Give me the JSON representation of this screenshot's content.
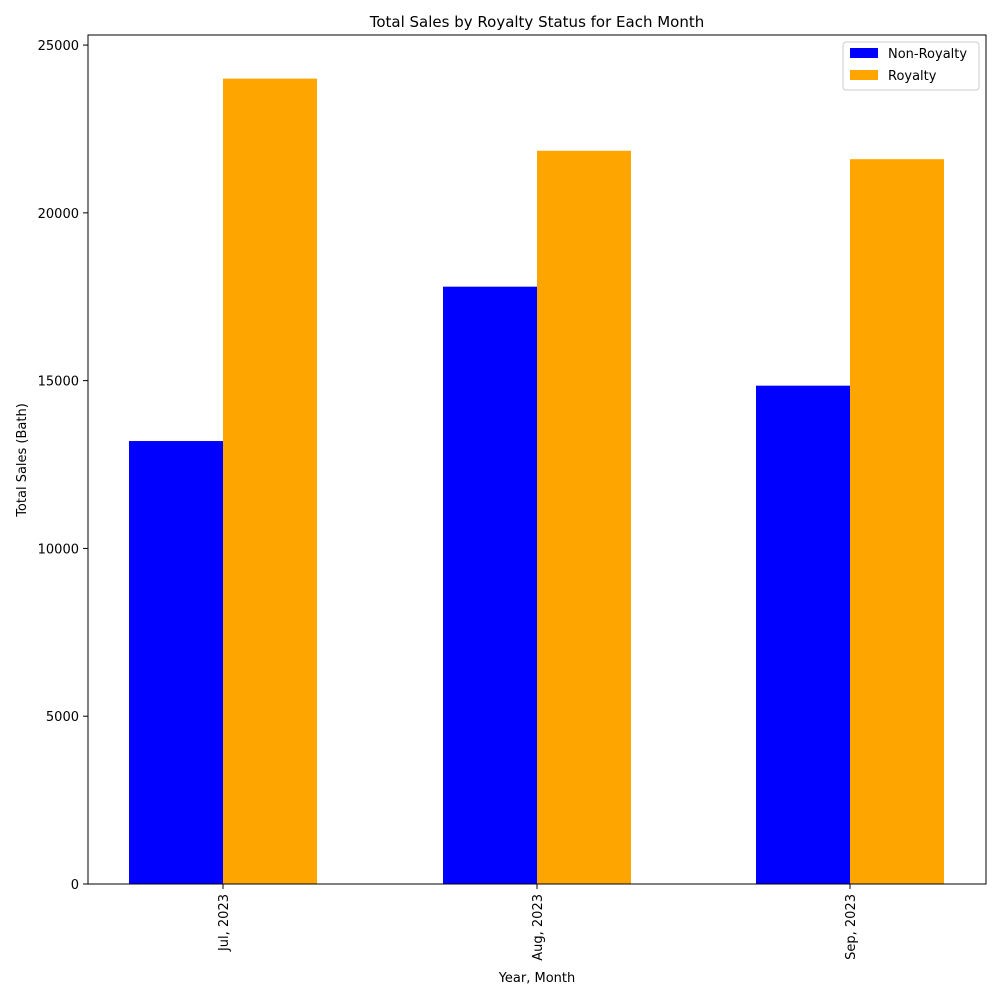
{
  "chart_data": {
    "type": "bar",
    "title": "Total Sales by Royalty Status for Each Month",
    "xlabel": "Year, Month",
    "ylabel": "Total Sales (Bath)",
    "categories": [
      "Jul, 2023",
      "Aug, 2023",
      "Sep, 2023"
    ],
    "series": [
      {
        "name": "Non-Royalty",
        "color": "#0000ff",
        "values": [
          13200,
          17800,
          14850
        ]
      },
      {
        "name": "Royalty",
        "color": "#ffa500",
        "values": [
          24000,
          21850,
          21600
        ]
      }
    ],
    "ylim": [
      0,
      25300
    ],
    "yticks": [
      0,
      5000,
      10000,
      15000,
      20000,
      25000
    ],
    "legend_position": "top-right",
    "grid": false
  }
}
